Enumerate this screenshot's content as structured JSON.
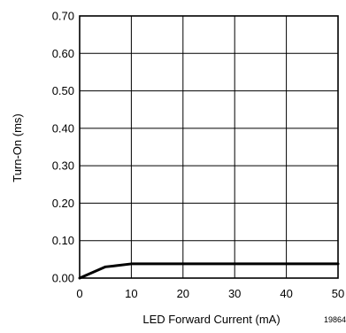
{
  "chart_data": {
    "type": "line",
    "xlabel": "LED Forward Current (mA)",
    "ylabel": "Turn-On (ms)",
    "xlim": [
      0,
      50
    ],
    "ylim": [
      0,
      0.7
    ],
    "x_ticks": [
      0,
      10,
      20,
      30,
      40,
      50
    ],
    "x_tick_labels": [
      "0",
      "10",
      "20",
      "30",
      "40",
      "50"
    ],
    "y_ticks": [
      0,
      0.1,
      0.2,
      0.3,
      0.4,
      0.5,
      0.6,
      0.7
    ],
    "y_tick_labels": [
      "0.00",
      "0.10",
      "0.20",
      "0.30",
      "0.40",
      "0.50",
      "0.60",
      "0.70"
    ],
    "grid": true,
    "series": [
      {
        "x": [
          0,
          5,
          7,
          10,
          15,
          20,
          30,
          40,
          50
        ],
        "values": [
          0,
          0.03,
          0.033,
          0.038,
          0.038,
          0.038,
          0.038,
          0.038,
          0.038
        ]
      }
    ],
    "figure_id": "19864"
  },
  "colors": {
    "line": "#000000",
    "grid": "#000000",
    "background": "#ffffff"
  }
}
